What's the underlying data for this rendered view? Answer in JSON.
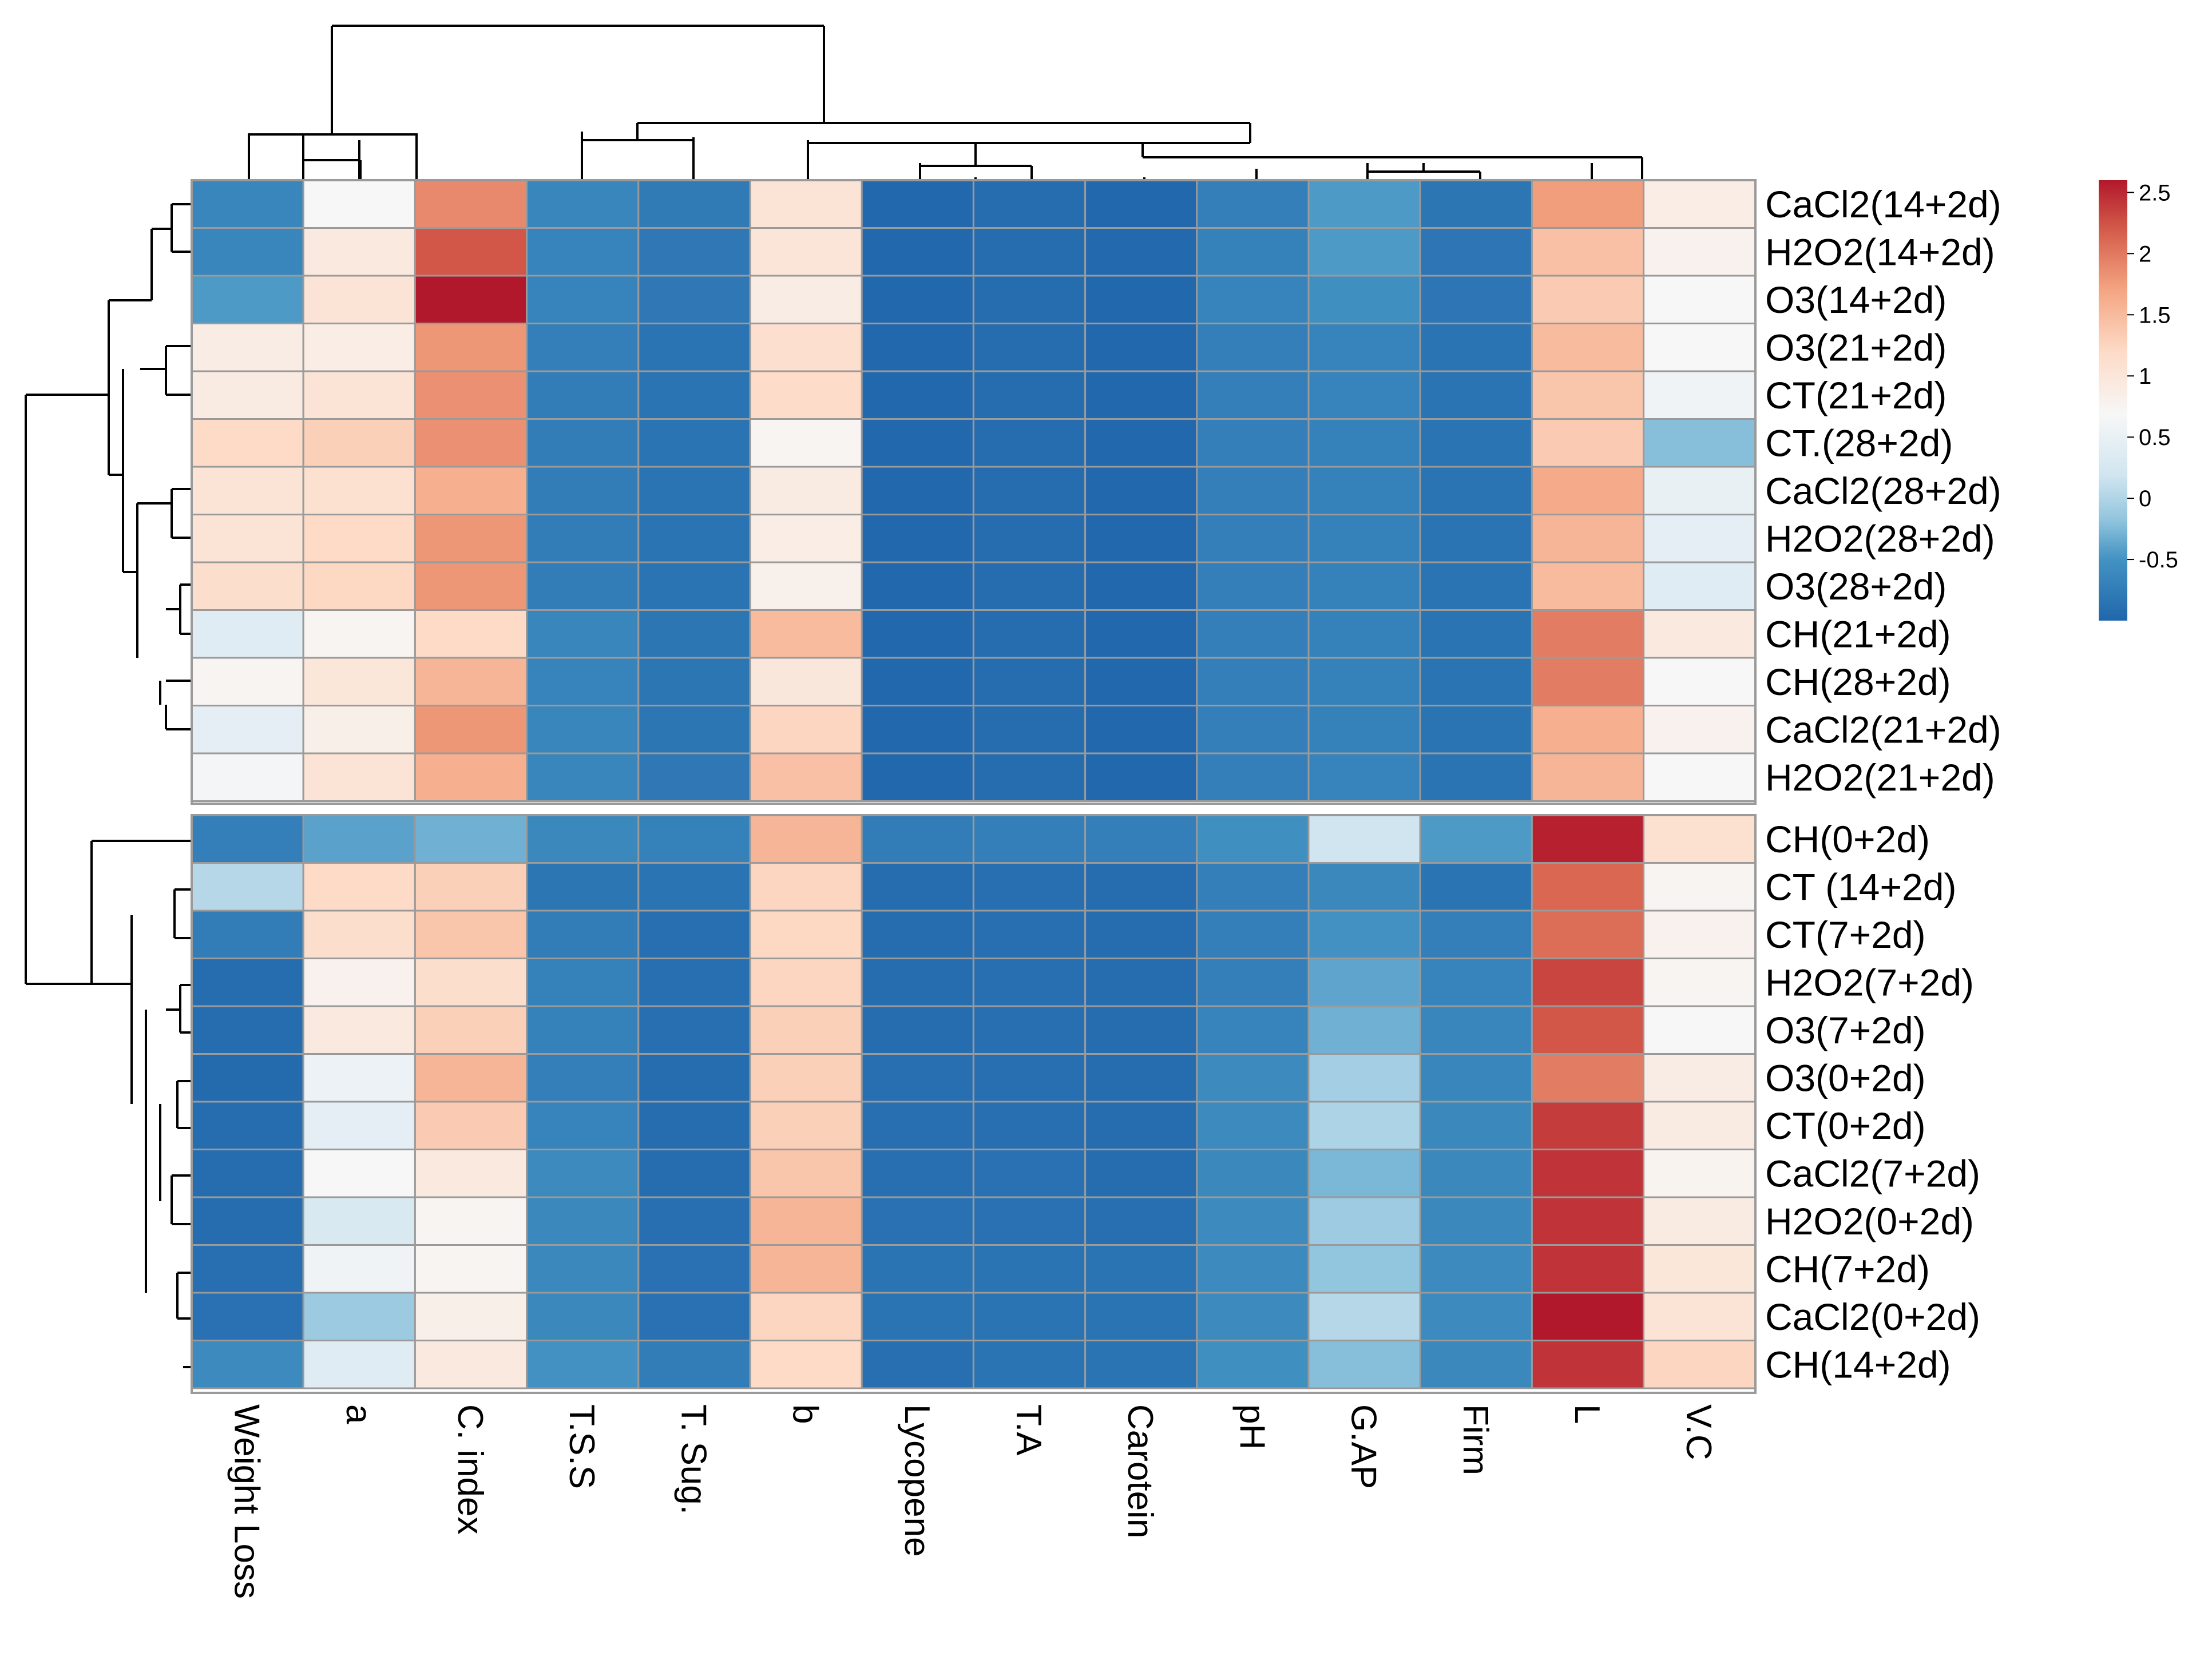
{
  "chart_data": {
    "type": "heatmap",
    "title": "",
    "columns": [
      "Weight Loss",
      "a",
      "C. index",
      "T.S.S",
      "T. Sug.",
      "b",
      "Lycopene",
      "T.A",
      "Carotein",
      "pH",
      "G.AP",
      "Firm",
      "L",
      "V.C"
    ],
    "rows": [
      "CaCl2(14+2d)",
      "H2O2(14+2d)",
      "O3(14+2d)",
      "O3(21+2d)",
      "CT(21+2d)",
      "CT.(28+2d)",
      "CaCl2(28+2d)",
      "H2O2(28+2d)",
      "O3(28+2d)",
      "CH(21+2d)",
      "CH(28+2d)",
      "CaCl2(21+2d)",
      "H2O2(21+2d)",
      "CH(0+2d)",
      "CT (14+2d)",
      "CT(7+2d)",
      "H2O2(7+2d)",
      "O3(7+2d)",
      "O3(0+2d)",
      "CT(0+2d)",
      "CaCl2(7+2d)",
      "H2O2(0+2d)",
      "CH(7+2d)",
      "CaCl2(0+2d)",
      "CH(14+2d)"
    ],
    "values": [
      [
        -0.65,
        0.7,
        1.9,
        -0.65,
        -0.78,
        1.05,
        -0.98,
        -0.92,
        -0.98,
        -0.72,
        -0.45,
        -0.82,
        1.75,
        0.88
      ],
      [
        -0.65,
        0.95,
        2.25,
        -0.68,
        -0.8,
        1.02,
        -0.98,
        -0.92,
        -0.97,
        -0.7,
        -0.45,
        -0.83,
        1.45,
        0.8
      ],
      [
        -0.45,
        1.05,
        2.6,
        -0.68,
        -0.8,
        0.9,
        -0.98,
        -0.92,
        -0.98,
        -0.68,
        -0.55,
        -0.83,
        1.35,
        0.7
      ],
      [
        0.9,
        0.88,
        1.8,
        -0.72,
        -0.85,
        1.12,
        -0.98,
        -0.92,
        -0.98,
        -0.72,
        -0.68,
        -0.85,
        1.5,
        0.7
      ],
      [
        0.92,
        1.05,
        1.85,
        -0.75,
        -0.85,
        1.18,
        -0.98,
        -0.92,
        -0.98,
        -0.72,
        -0.68,
        -0.85,
        1.4,
        0.6
      ],
      [
        1.2,
        1.3,
        1.85,
        -0.75,
        -0.85,
        0.75,
        -0.98,
        -0.92,
        -0.98,
        -0.72,
        -0.7,
        -0.85,
        1.35,
        -0.2
      ],
      [
        1.05,
        1.1,
        1.6,
        -0.75,
        -0.85,
        0.92,
        -0.98,
        -0.92,
        -0.98,
        -0.72,
        -0.7,
        -0.85,
        1.65,
        0.5
      ],
      [
        1.05,
        1.2,
        1.8,
        -0.75,
        -0.85,
        0.88,
        -0.98,
        -0.92,
        -0.98,
        -0.72,
        -0.7,
        -0.85,
        1.55,
        0.45
      ],
      [
        1.15,
        1.22,
        1.8,
        -0.75,
        -0.85,
        0.82,
        -0.98,
        -0.92,
        -0.98,
        -0.72,
        -0.7,
        -0.85,
        1.5,
        0.4
      ],
      [
        0.4,
        0.75,
        1.2,
        -0.65,
        -0.82,
        1.5,
        -0.98,
        -0.92,
        -0.98,
        -0.72,
        -0.7,
        -0.85,
        2.0,
        0.95
      ],
      [
        0.75,
        1.0,
        1.55,
        -0.68,
        -0.82,
        0.98,
        -0.98,
        -0.92,
        -0.98,
        -0.72,
        -0.7,
        -0.85,
        2.0,
        0.7
      ],
      [
        0.45,
        0.85,
        1.8,
        -0.65,
        -0.82,
        1.25,
        -0.98,
        -0.92,
        -0.98,
        -0.72,
        -0.7,
        -0.85,
        1.6,
        0.8
      ],
      [
        0.65,
        1.05,
        1.6,
        -0.65,
        -0.8,
        1.45,
        -0.98,
        -0.92,
        -0.98,
        -0.72,
        -0.68,
        -0.85,
        1.55,
        0.7
      ],
      [
        -0.72,
        -0.4,
        -0.3,
        -0.62,
        -0.7,
        1.55,
        -0.75,
        -0.72,
        -0.72,
        -0.55,
        0.2,
        -0.45,
        2.55,
        1.1
      ],
      [
        0.05,
        1.2,
        1.3,
        -0.82,
        -0.85,
        1.25,
        -0.92,
        -0.9,
        -0.92,
        -0.72,
        -0.62,
        -0.85,
        2.15,
        0.75
      ],
      [
        -0.75,
        1.15,
        1.4,
        -0.75,
        -0.9,
        1.22,
        -0.92,
        -0.9,
        -0.92,
        -0.72,
        -0.52,
        -0.72,
        2.1,
        0.8
      ],
      [
        -0.92,
        0.8,
        1.15,
        -0.7,
        -0.9,
        1.25,
        -0.92,
        -0.9,
        -0.92,
        -0.72,
        -0.38,
        -0.68,
        2.35,
        0.75
      ],
      [
        -0.92,
        0.95,
        1.3,
        -0.7,
        -0.9,
        1.3,
        -0.92,
        -0.9,
        -0.92,
        -0.68,
        -0.3,
        -0.65,
        2.25,
        0.7
      ],
      [
        -0.95,
        0.55,
        1.55,
        -0.72,
        -0.92,
        1.3,
        -0.9,
        -0.9,
        -0.92,
        -0.6,
        -0.05,
        -0.65,
        2.0,
        0.9
      ],
      [
        -0.92,
        0.45,
        1.35,
        -0.68,
        -0.92,
        1.3,
        -0.9,
        -0.9,
        -0.92,
        -0.6,
        0.0,
        -0.62,
        2.4,
        0.92
      ],
      [
        -0.92,
        0.7,
        0.95,
        -0.6,
        -0.92,
        1.4,
        -0.9,
        -0.88,
        -0.92,
        -0.62,
        -0.25,
        -0.62,
        2.45,
        0.78
      ],
      [
        -0.92,
        0.3,
        0.75,
        -0.62,
        -0.9,
        1.55,
        -0.88,
        -0.88,
        -0.9,
        -0.6,
        -0.08,
        -0.62,
        2.45,
        0.92
      ],
      [
        -0.9,
        0.6,
        0.75,
        -0.62,
        -0.88,
        1.55,
        -0.85,
        -0.85,
        -0.85,
        -0.6,
        -0.15,
        -0.6,
        2.45,
        1.0
      ],
      [
        -0.88,
        -0.1,
        0.85,
        -0.62,
        -0.88,
        1.25,
        -0.85,
        -0.85,
        -0.85,
        -0.6,
        0.05,
        -0.6,
        2.6,
        1.05
      ],
      [
        -0.6,
        0.4,
        0.95,
        -0.52,
        -0.75,
        1.2,
        -0.9,
        -0.85,
        -0.85,
        -0.55,
        -0.2,
        -0.62,
        2.45,
        1.25
      ]
    ],
    "row_groups": [
      13,
      12
    ],
    "legend": {
      "position": "top-right",
      "ticks": [
        "2.5",
        "2",
        "1.5",
        "1",
        "0.5",
        "0",
        "-0.5"
      ],
      "tick_values": [
        2.5,
        2,
        1.5,
        1,
        0.5,
        0,
        -0.5
      ],
      "range": [
        -1,
        2.6
      ]
    },
    "colors": {
      "low": "#2166ac",
      "mid_low": "#4393c3",
      "mid_light": "#92c5de",
      "pale_blue": "#d1e5f0",
      "mid": "#f7f7f7",
      "pale_red": "#fddbc7",
      "mid_high": "#f4a582",
      "high_mid": "#d6604d",
      "high": "#b2182b",
      "grid": "#9a9a9a"
    }
  }
}
